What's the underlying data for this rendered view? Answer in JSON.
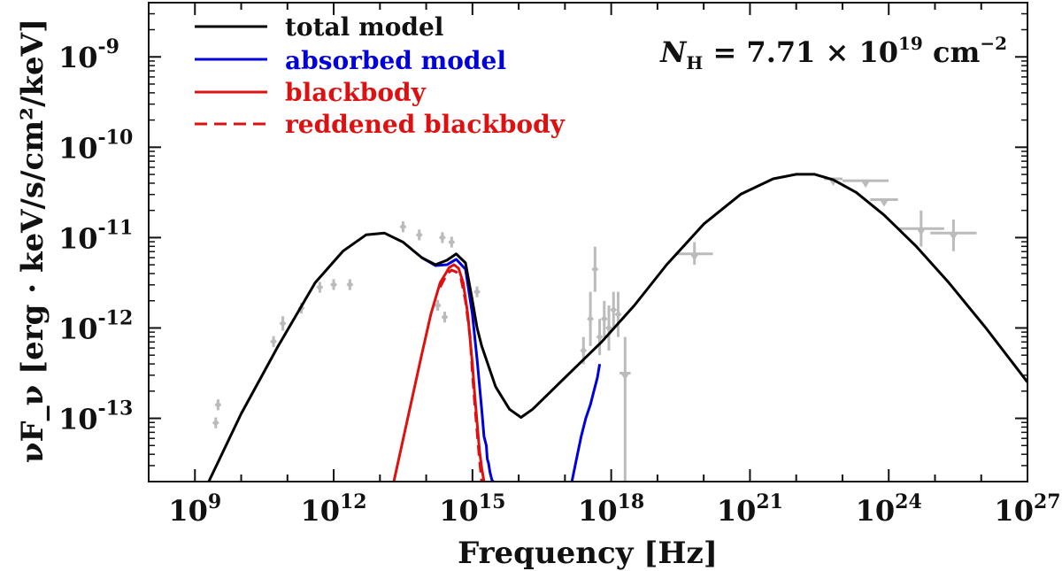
{
  "chart_data": {
    "type": "line",
    "title": "",
    "xlabel": "Frequency [Hz]",
    "ylabel": "νF_ν [erg · keV/s/cm²/keV]",
    "xscale": "log",
    "yscale": "log",
    "xlim_log10": [
      8.0,
      27.0
    ],
    "ylim_log10": [
      -13.7,
      -8.4
    ],
    "annotation": {
      "prefix": "N",
      "sub": "H",
      "eq": " = 7.71 × 10",
      "exp": "19",
      "unit": " cm",
      "unit_exp": "−2"
    },
    "x_ticks": [
      {
        "base": "10",
        "exp": "9",
        "log": 9
      },
      {
        "base": "10",
        "exp": "12",
        "log": 12
      },
      {
        "base": "10",
        "exp": "15",
        "log": 15
      },
      {
        "base": "10",
        "exp": "18",
        "log": 18
      },
      {
        "base": "10",
        "exp": "21",
        "log": 21
      },
      {
        "base": "10",
        "exp": "24",
        "log": 24
      },
      {
        "base": "10",
        "exp": "27",
        "log": 27
      }
    ],
    "y_ticks": [
      {
        "base": "10",
        "exp": "-9",
        "log": -9
      },
      {
        "base": "10",
        "exp": "-10",
        "log": -10
      },
      {
        "base": "10",
        "exp": "-11",
        "log": -11
      },
      {
        "base": "10",
        "exp": "-12",
        "log": -12
      },
      {
        "base": "10",
        "exp": "-13",
        "log": -13
      }
    ],
    "colors": {
      "total": "#000000",
      "absorbed": "#0000dd",
      "blackbody": "#dd1111",
      "data": "#bbbbbb"
    },
    "series": [
      {
        "name": "total model",
        "style": "solid",
        "color_key": "total",
        "x": [
          9.3,
          10.0,
          10.8,
          11.6,
          12.2,
          12.7,
          13.1,
          13.5,
          13.9,
          14.2,
          14.45,
          14.65,
          14.85,
          15.0,
          15.1,
          15.2,
          15.5,
          15.8,
          16.05,
          16.3,
          16.7,
          17.2,
          17.8,
          18.5,
          19.2,
          20.0,
          20.8,
          21.5,
          22.0,
          22.4,
          22.8,
          23.3,
          23.9,
          24.6,
          25.3,
          26.1,
          27.0
        ],
        "y": [
          -13.7,
          -12.95,
          -12.2,
          -11.5,
          -11.15,
          -10.97,
          -10.95,
          -11.05,
          -11.22,
          -11.3,
          -11.25,
          -11.18,
          -11.28,
          -11.7,
          -12.0,
          -12.2,
          -12.65,
          -12.9,
          -12.99,
          -12.9,
          -12.7,
          -12.45,
          -12.15,
          -11.75,
          -11.3,
          -10.85,
          -10.52,
          -10.35,
          -10.3,
          -10.3,
          -10.36,
          -10.5,
          -10.75,
          -11.1,
          -11.5,
          -12.0,
          -12.6
        ]
      },
      {
        "name": "absorbed model",
        "style": "solid",
        "color_key": "absorbed",
        "x": [
          13.9,
          14.2,
          14.45,
          14.65,
          14.85,
          15.0,
          15.1,
          15.2,
          15.25,
          15.3,
          15.32,
          15.35,
          15.38,
          15.42,
          15.45
        ],
        "y": [
          -11.22,
          -11.31,
          -11.3,
          -11.24,
          -11.35,
          -11.85,
          -12.35,
          -12.9,
          -13.2,
          -13.3,
          -13.45,
          -13.5,
          -13.6,
          -13.68,
          -13.7
        ],
        "x2": [
          17.15,
          17.25,
          17.35,
          17.45,
          17.55,
          17.6,
          17.7,
          17.75
        ],
        "y2": [
          -13.7,
          -13.45,
          -13.2,
          -13.0,
          -12.85,
          -12.75,
          -12.55,
          -12.4
        ]
      },
      {
        "name": "blackbody",
        "style": "solid",
        "color_key": "blackbody",
        "x": [
          13.3,
          13.6,
          13.9,
          14.1,
          14.3,
          14.5,
          14.6,
          14.7,
          14.8,
          14.9,
          15.0,
          15.05,
          15.1,
          15.15,
          15.2,
          15.25
        ],
        "y": [
          -13.7,
          -13.0,
          -12.3,
          -11.85,
          -11.5,
          -11.33,
          -11.3,
          -11.34,
          -11.5,
          -11.85,
          -12.4,
          -12.75,
          -13.05,
          -13.35,
          -13.55,
          -13.7
        ]
      },
      {
        "name": "reddened blackbody",
        "style": "dashed",
        "color_key": "blackbody",
        "x": [
          14.3,
          14.45,
          14.55,
          14.65,
          14.75,
          14.85,
          14.95,
          15.0,
          15.05,
          15.1,
          15.15,
          15.2
        ],
        "y": [
          -11.55,
          -11.4,
          -11.36,
          -11.38,
          -11.45,
          -11.7,
          -12.1,
          -12.5,
          -12.85,
          -13.15,
          -13.45,
          -13.7
        ]
      }
    ],
    "data_points": [
      {
        "x": 9.5,
        "y": -12.85,
        "dx": 0.05,
        "dy": 0.06,
        "m": "d"
      },
      {
        "x": 9.45,
        "y": -13.05,
        "dx": 0.05,
        "dy": 0.06,
        "m": "d"
      },
      {
        "x": 10.7,
        "y": -12.15,
        "dx": 0.05,
        "dy": 0.06,
        "m": "d"
      },
      {
        "x": 10.9,
        "y": -11.95,
        "dx": 0.05,
        "dy": 0.08,
        "m": "d"
      },
      {
        "x": 11.3,
        "y": -11.78,
        "dx": 0.05,
        "dy": 0.06,
        "m": "d"
      },
      {
        "x": 11.7,
        "y": -11.55,
        "dx": 0.05,
        "dy": 0.06,
        "m": "d"
      },
      {
        "x": 12.0,
        "y": -11.52,
        "dx": 0.05,
        "dy": 0.06,
        "m": "d"
      },
      {
        "x": 12.35,
        "y": -11.52,
        "dx": 0.05,
        "dy": 0.06,
        "m": "d"
      },
      {
        "x": 13.5,
        "y": -10.88,
        "dx": 0.05,
        "dy": 0.06,
        "m": "d"
      },
      {
        "x": 13.85,
        "y": -10.97,
        "dx": 0.05,
        "dy": 0.06,
        "m": "d"
      },
      {
        "x": 14.35,
        "y": -11.0,
        "dx": 0.05,
        "dy": 0.06,
        "m": "d"
      },
      {
        "x": 14.55,
        "y": -11.05,
        "dx": 0.05,
        "dy": 0.06,
        "m": "d"
      },
      {
        "x": 14.25,
        "y": -11.75,
        "dx": 0.05,
        "dy": 0.06,
        "m": "d"
      },
      {
        "x": 14.4,
        "y": -11.88,
        "dx": 0.05,
        "dy": 0.06,
        "m": "d"
      },
      {
        "x": 15.1,
        "y": -11.6,
        "dx": 0.05,
        "dy": 0.06,
        "m": "d"
      },
      {
        "x": 17.4,
        "y": -12.25,
        "dx": 0.05,
        "dy": 0.15,
        "m": "d"
      },
      {
        "x": 17.55,
        "y": -11.9,
        "dx": 0.05,
        "dy": 0.3,
        "m": "d"
      },
      {
        "x": 17.65,
        "y": -11.35,
        "dx": 0.04,
        "dy": 0.25,
        "m": "d"
      },
      {
        "x": 17.75,
        "y": -12.1,
        "dx": 0.04,
        "dy": 0.2,
        "m": "d"
      },
      {
        "x": 17.85,
        "y": -11.9,
        "dx": 0.04,
        "dy": 0.2,
        "m": "d"
      },
      {
        "x": 17.95,
        "y": -12.0,
        "dx": 0.04,
        "dy": 0.25,
        "m": "d"
      },
      {
        "x": 18.05,
        "y": -11.8,
        "dx": 0.04,
        "dy": 0.2,
        "m": "d"
      },
      {
        "x": 18.15,
        "y": -11.85,
        "dx": 0.04,
        "dy": 0.25,
        "m": "d"
      },
      {
        "x": 18.3,
        "y": -12.5,
        "dx": 0.12,
        "dy": 0.0,
        "m": "t"
      },
      {
        "x": 19.8,
        "y": -11.18,
        "dx": 0.4,
        "dy": 0.0,
        "m": "t"
      },
      {
        "x": 22.8,
        "y": -10.35,
        "dx": 0.2,
        "dy": 0.0,
        "m": "t"
      },
      {
        "x": 23.5,
        "y": -10.37,
        "dx": 0.5,
        "dy": 0.0,
        "m": "t"
      },
      {
        "x": 23.9,
        "y": -10.58,
        "dx": 0.3,
        "dy": 0.0,
        "m": "t"
      },
      {
        "x": 24.7,
        "y": -10.9,
        "dx": 0.5,
        "dy": 0.0,
        "m": "t"
      },
      {
        "x": 25.4,
        "y": -10.95,
        "dx": 0.5,
        "dy": 0.0,
        "m": "t"
      }
    ],
    "data_errbars": [
      {
        "x": 18.3,
        "ylo": -13.7,
        "yhi": -12.1
      },
      {
        "x": 19.8,
        "ylo": -11.3,
        "yhi": -11.05
      },
      {
        "x": 24.7,
        "ylo": -11.1,
        "yhi": -10.7
      },
      {
        "x": 25.4,
        "ylo": -11.15,
        "yhi": -10.8
      }
    ]
  }
}
